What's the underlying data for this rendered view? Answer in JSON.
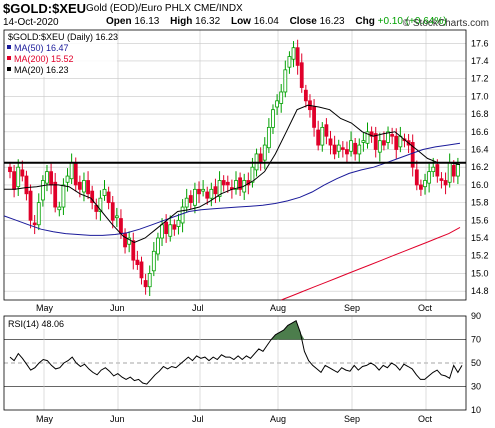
{
  "header": {
    "symbol": "$GOLD:$XEU",
    "subtitle": "Gold (EOD)/Euro PHLX  CME/INDX",
    "date": "14-Oct-2020",
    "open_label": "Open",
    "open": "16.13",
    "high_label": "High",
    "high": "16.32",
    "low_label": "Low",
    "low": "16.04",
    "close_label": "Close",
    "close": "16.23",
    "chg_label": "Chg",
    "chg": "+0.10 (+0.64%)",
    "credit": "© StockCharts.com"
  },
  "colors": {
    "up": "#00a000",
    "down": "#e0002a",
    "ma50": "#1a1a9a",
    "ma200": "#e0002a",
    "ma20": "#000000",
    "rsi_line": "#000000",
    "rsi_overbought_fill": "#4c7d4c",
    "grid": "#c8c8c8"
  },
  "chart_data": [
    {
      "type": "candlestick",
      "title": "$GOLD:$XEU (Daily) 16.23",
      "ylim": [
        14.7,
        17.75
      ],
      "y_ticks": [
        14.8,
        15.0,
        15.2,
        15.4,
        15.6,
        15.8,
        16.0,
        16.2,
        16.4,
        16.6,
        16.8,
        17.0,
        17.2,
        17.4,
        17.6
      ],
      "x_ticks": [
        "May",
        "Jun",
        "Jul",
        "Aug",
        "Sep",
        "Oct"
      ],
      "grid": true,
      "legend_position": "top-left",
      "horizontal_line": 16.25,
      "series": [
        {
          "name": "$GOLD:$XEU (Daily) 16.23",
          "kind": "close",
          "values": [
            16.15,
            15.95,
            16.2,
            16.1,
            15.9,
            15.6,
            15.55,
            15.8,
            16.05,
            16.15,
            16.0,
            15.75,
            15.75,
            16.0,
            16.1,
            16.25,
            16.0,
            15.95,
            16.05,
            15.9,
            15.8,
            15.7,
            15.85,
            15.95,
            15.8,
            15.6,
            15.65,
            15.45,
            15.3,
            15.4,
            15.15,
            15.1,
            14.95,
            14.85,
            15.0,
            15.25,
            15.4,
            15.55,
            15.45,
            15.55,
            15.5,
            15.6,
            15.75,
            15.85,
            15.8,
            15.95,
            15.9,
            15.95,
            15.85,
            15.95,
            15.9,
            16.05,
            16.0,
            16.0,
            15.95,
            16.05,
            15.95,
            16.05,
            16.0,
            16.2,
            16.35,
            16.25,
            16.45,
            16.65,
            16.85,
            16.95,
            17.05,
            17.3,
            17.45,
            17.55,
            17.35,
            17.1,
            16.95,
            16.85,
            16.65,
            16.45,
            16.65,
            16.55,
            16.45,
            16.35,
            16.45,
            16.4,
            16.35,
            16.5,
            16.35,
            16.45,
            16.5,
            16.6,
            16.55,
            16.4,
            16.5,
            16.45,
            16.6,
            16.55,
            16.4,
            16.55,
            16.5,
            16.45,
            16.2,
            16.0,
            15.95,
            16.05,
            16.15,
            16.2,
            16.1,
            16.05,
            16.0,
            16.25,
            16.1,
            16.23
          ]
        },
        {
          "name": "MA(50) 16.47",
          "values": [
            15.65,
            15.6,
            15.55,
            15.5,
            15.47,
            15.45,
            15.44,
            15.43,
            15.43,
            15.44,
            15.46,
            15.5,
            15.55,
            15.6,
            15.65,
            15.7,
            15.72,
            15.73,
            15.74,
            15.75,
            15.76,
            15.77,
            15.79,
            15.82,
            15.86,
            15.92,
            16.0,
            16.07,
            16.13,
            16.17,
            16.2,
            16.25,
            16.3,
            16.35,
            16.4,
            16.43,
            16.45,
            16.47
          ]
        },
        {
          "name": "MA(200) 15.52",
          "values": [
            14.7,
            14.75,
            14.8,
            14.85,
            14.9,
            14.95,
            15.0,
            15.05,
            15.1,
            15.15,
            15.2,
            15.25,
            15.3,
            15.35,
            15.4,
            15.45,
            15.52
          ]
        },
        {
          "name": "MA(20) 16.23",
          "values": [
            15.95,
            15.95,
            15.97,
            15.98,
            16.0,
            16.0,
            15.98,
            15.9,
            15.85,
            15.7,
            15.55,
            15.42,
            15.35,
            15.4,
            15.5,
            15.6,
            15.7,
            15.72,
            15.75,
            15.82,
            15.9,
            15.95,
            15.98,
            16.05,
            16.15,
            16.35,
            16.6,
            16.85,
            16.9,
            16.88,
            16.85,
            16.75,
            16.7,
            16.6,
            16.55,
            16.58,
            16.6,
            16.5,
            16.4,
            16.3,
            16.25,
            16.25,
            16.23
          ]
        }
      ]
    },
    {
      "type": "line",
      "title": "RSI(14) 48.06",
      "ylim": [
        10,
        90
      ],
      "y_ticks": [
        10,
        30,
        50,
        70,
        90
      ],
      "reference_lines": [
        30,
        50,
        70
      ],
      "x_ticks": [
        "May",
        "Jun",
        "Jul",
        "Aug",
        "Sep",
        "Oct"
      ],
      "series": [
        {
          "name": "RSI(14) 48.06",
          "values": [
            55,
            52,
            58,
            54,
            49,
            44,
            46,
            50,
            53,
            52,
            48,
            45,
            46,
            50,
            52,
            55,
            50,
            47,
            49,
            45,
            42,
            40,
            44,
            46,
            43,
            39,
            41,
            38,
            36,
            38,
            35,
            36,
            33,
            32,
            36,
            40,
            43,
            47,
            45,
            47,
            46,
            49,
            52,
            55,
            52,
            56,
            54,
            55,
            52,
            55,
            53,
            57,
            55,
            55,
            53,
            56,
            53,
            56,
            54,
            58,
            62,
            60,
            65,
            70,
            74,
            76,
            78,
            82,
            84,
            86,
            76,
            60,
            52,
            48,
            45,
            42,
            48,
            46,
            44,
            42,
            46,
            44,
            43,
            48,
            44,
            47,
            48,
            50,
            48,
            44,
            48,
            46,
            50,
            48,
            44,
            49,
            47,
            45,
            40,
            36,
            36,
            39,
            42,
            44,
            40,
            39,
            37,
            48,
            42,
            48
          ]
        }
      ]
    }
  ]
}
